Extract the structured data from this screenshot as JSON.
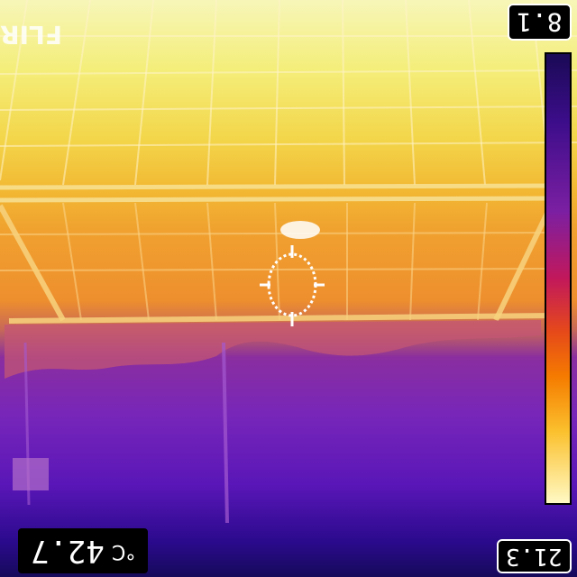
{
  "logo": {
    "text": "FLIR"
  },
  "scale": {
    "max": "8.1",
    "min": "21.3"
  },
  "readout": {
    "value": "42.7",
    "unit": "°C"
  },
  "colors": {
    "hot": "#f7f6b8",
    "mid": "#f0a12f",
    "cool": "#7726b9",
    "cold": "#160a5a"
  },
  "icons": {
    "crosshair": "spot-meter-crosshair-icon"
  }
}
